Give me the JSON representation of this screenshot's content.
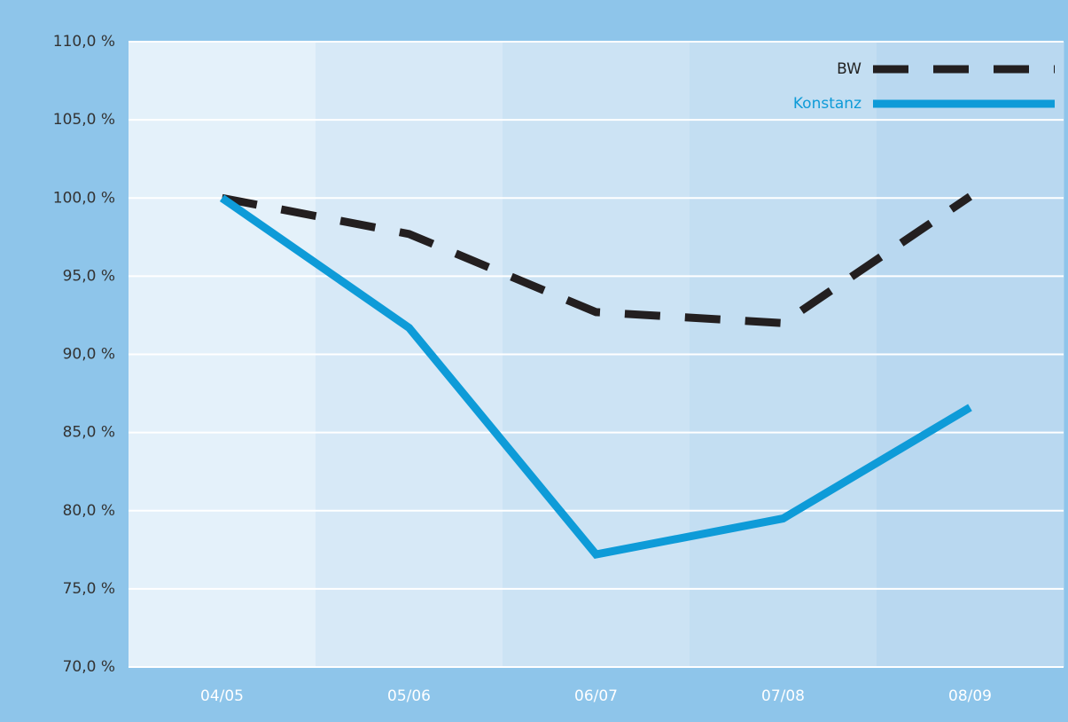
{
  "chart_data": {
    "type": "line",
    "categories": [
      "04/05",
      "05/06",
      "06/07",
      "07/08",
      "08/09"
    ],
    "series": [
      {
        "name": "BW",
        "color": "#231f20",
        "line_style": "dashed",
        "values": [
          100,
          97.7,
          92.7,
          92.0,
          100.1
        ]
      },
      {
        "name": "Konstanz",
        "color": "#0e9bd8",
        "line_style": "solid",
        "values": [
          100,
          91.7,
          77.2,
          79.5,
          86.6
        ]
      }
    ],
    "ylim": [
      70,
      110
    ],
    "yticks": [
      {
        "value": 70,
        "label": "70,0 %"
      },
      {
        "value": 75,
        "label": "75,0 %"
      },
      {
        "value": 80,
        "label": "80,0 %"
      },
      {
        "value": 85,
        "label": "85,0 %"
      },
      {
        "value": 90,
        "label": "90,0 %"
      },
      {
        "value": 95,
        "label": "95,0 %"
      },
      {
        "value": 100,
        "label": "100,0 %"
      },
      {
        "value": 105,
        "label": "105,0 %"
      },
      {
        "value": 110,
        "label": "110,0 %"
      }
    ],
    "grid": true,
    "legend": "upper right"
  }
}
